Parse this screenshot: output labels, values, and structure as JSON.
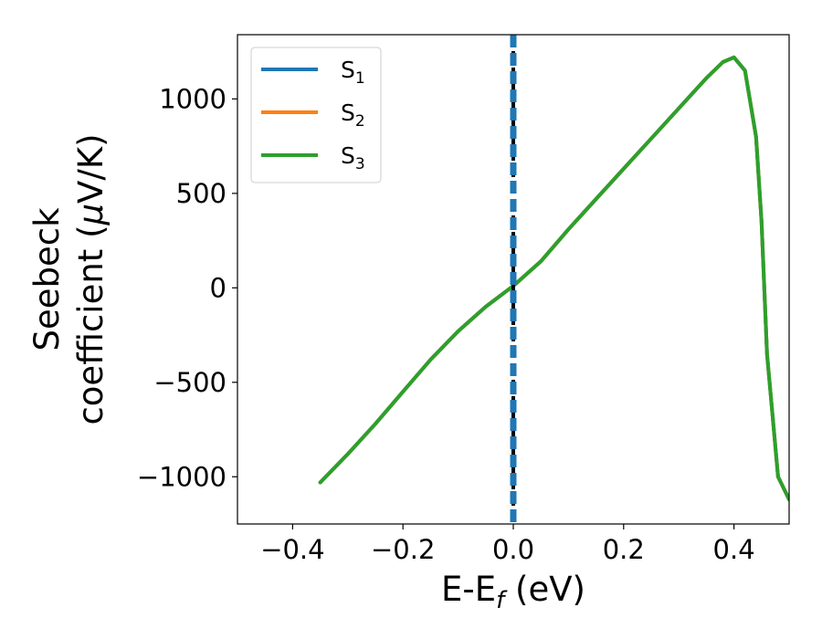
{
  "chart_data": {
    "type": "line",
    "xlabel": "E-E",
    "xlabel_sub": "f",
    "xlabel_unit": " (eV)",
    "ylabel_line1": "Seebeck",
    "ylabel_line2": "coefficient  (",
    "ylabel_mu": "μ",
    "ylabel_unit": "V/K)",
    "xlim": [
      -0.5,
      0.5
    ],
    "ylim": [
      -1250,
      1340
    ],
    "x_ticks": [
      -0.4,
      -0.2,
      0.0,
      0.2,
      0.4
    ],
    "x_tick_labels": [
      "−0.4",
      "−0.2",
      "0.0",
      "0.2",
      "0.4"
    ],
    "y_ticks": [
      -1000,
      -500,
      0,
      500,
      1000
    ],
    "y_tick_labels": [
      "−1000",
      "−500",
      "0",
      "500",
      "1000"
    ],
    "grid": false,
    "legend_placement": "top-left",
    "fermi_line": {
      "x": 0.0,
      "style": "dashed"
    },
    "series": [
      {
        "name": "S",
        "sub": "1",
        "color": "#1f77b4",
        "x": [
          -0.35,
          -0.3,
          -0.25,
          -0.2,
          -0.15,
          -0.1,
          -0.05,
          0.0,
          0.05,
          0.1,
          0.15,
          0.2,
          0.25,
          0.3,
          0.35,
          0.38,
          0.4,
          0.42,
          0.44,
          0.45,
          0.46,
          0.48,
          0.5
        ],
        "y": [
          -1030,
          -880,
          -720,
          -550,
          -380,
          -230,
          -100,
          10,
          140,
          310,
          470,
          630,
          790,
          950,
          1110,
          1195,
          1220,
          1150,
          800,
          350,
          -350,
          -1000,
          -1120
        ]
      },
      {
        "name": "S",
        "sub": "2",
        "color": "#ff7f0e",
        "x": [
          -0.35,
          -0.3,
          -0.25,
          -0.2,
          -0.15,
          -0.1,
          -0.05,
          0.0,
          0.05,
          0.1,
          0.15,
          0.2,
          0.25,
          0.3,
          0.35,
          0.38,
          0.4,
          0.42,
          0.44,
          0.45,
          0.46,
          0.48,
          0.5
        ],
        "y": [
          -1030,
          -880,
          -720,
          -550,
          -380,
          -230,
          -100,
          10,
          140,
          310,
          470,
          630,
          790,
          950,
          1110,
          1195,
          1220,
          1150,
          800,
          350,
          -350,
          -1000,
          -1120
        ]
      },
      {
        "name": "S",
        "sub": "3",
        "color": "#2ca02c",
        "x": [
          -0.35,
          -0.3,
          -0.25,
          -0.2,
          -0.15,
          -0.1,
          -0.05,
          0.0,
          0.05,
          0.1,
          0.15,
          0.2,
          0.25,
          0.3,
          0.35,
          0.38,
          0.4,
          0.42,
          0.44,
          0.45,
          0.46,
          0.48,
          0.5
        ],
        "y": [
          -1030,
          -880,
          -720,
          -550,
          -380,
          -230,
          -100,
          10,
          140,
          310,
          470,
          630,
          790,
          950,
          1110,
          1195,
          1220,
          1150,
          800,
          350,
          -350,
          -1000,
          -1120
        ]
      }
    ]
  }
}
